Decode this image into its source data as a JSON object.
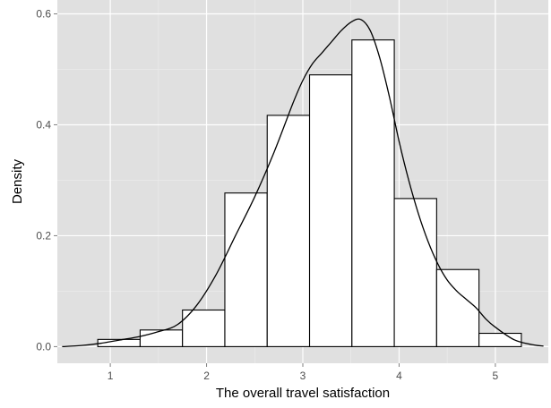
{
  "chart_data": {
    "type": "bar",
    "title": "",
    "xlabel": "The overall travel satisfaction",
    "ylabel": "Density",
    "xlim": [
      0.45,
      5.55
    ],
    "ylim": [
      -0.03,
      0.625
    ],
    "x_ticks": [
      1,
      2,
      3,
      4,
      5
    ],
    "y_ticks": [
      0.0,
      0.2,
      0.4,
      0.6
    ],
    "x_tick_labels": [
      "1",
      "2",
      "3",
      "4",
      "5"
    ],
    "y_tick_labels": [
      "0.0",
      "0.2",
      "0.4",
      "0.6"
    ],
    "grid": true,
    "legend": "none",
    "colors": {
      "panel_background": "#e0e0e0",
      "grid_major": "#ffffff",
      "grid_minor": "#ededed",
      "bar_fill": "#ffffff",
      "bar_outline": "#000000",
      "density_line": "#000000"
    },
    "histogram": {
      "bins": [
        {
          "x0": 0.87,
          "x1": 1.31,
          "density": 0.013
        },
        {
          "x0": 1.31,
          "x1": 1.75,
          "density": 0.03
        },
        {
          "x0": 1.75,
          "x1": 2.19,
          "density": 0.066
        },
        {
          "x0": 2.19,
          "x1": 2.63,
          "density": 0.277
        },
        {
          "x0": 2.63,
          "x1": 3.07,
          "density": 0.417
        },
        {
          "x0": 3.07,
          "x1": 3.51,
          "density": 0.49
        },
        {
          "x0": 3.51,
          "x1": 3.95,
          "density": 0.553
        },
        {
          "x0": 3.95,
          "x1": 4.39,
          "density": 0.267
        },
        {
          "x0": 4.39,
          "x1": 4.83,
          "density": 0.139
        },
        {
          "x0": 4.83,
          "x1": 5.27,
          "density": 0.024
        }
      ]
    },
    "density_curve": {
      "x": [
        0.5,
        0.7,
        0.9,
        1.1,
        1.3,
        1.5,
        1.7,
        1.9,
        2.1,
        2.3,
        2.5,
        2.7,
        2.9,
        3.0,
        3.1,
        3.2,
        3.3,
        3.4,
        3.5,
        3.6,
        3.7,
        3.8,
        3.9,
        4.0,
        4.1,
        4.2,
        4.3,
        4.4,
        4.5,
        4.6,
        4.7,
        4.8,
        4.9,
        5.0,
        5.2,
        5.4,
        5.5
      ],
      "y": [
        0.0,
        0.002,
        0.006,
        0.012,
        0.018,
        0.027,
        0.04,
        0.075,
        0.13,
        0.2,
        0.27,
        0.35,
        0.44,
        0.48,
        0.51,
        0.53,
        0.55,
        0.57,
        0.585,
        0.59,
        0.57,
        0.52,
        0.45,
        0.37,
        0.3,
        0.24,
        0.19,
        0.15,
        0.12,
        0.1,
        0.085,
        0.07,
        0.05,
        0.035,
        0.012,
        0.003,
        0.001
      ]
    }
  }
}
